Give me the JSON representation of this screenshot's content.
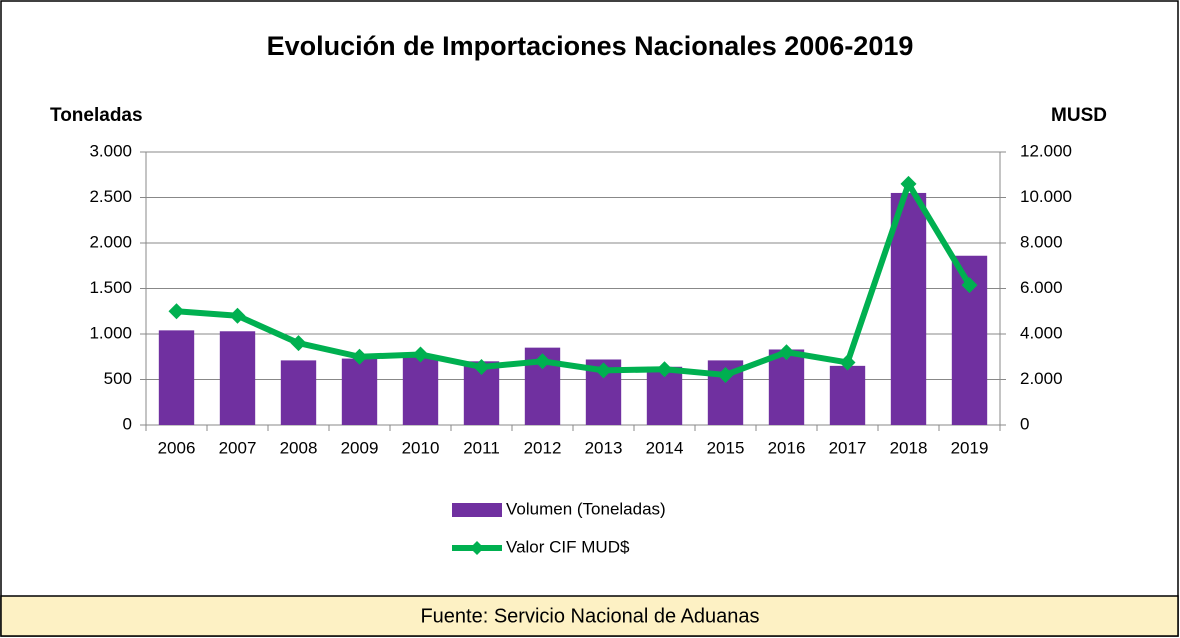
{
  "chart_data": {
    "type": "bar",
    "title": "Evolución de Importaciones Nacionales 2006-2019",
    "y_label": "Toneladas",
    "y2_label": "MUSD",
    "categories": [
      "2006",
      "2007",
      "2008",
      "2009",
      "2010",
      "2011",
      "2012",
      "2013",
      "2014",
      "2015",
      "2016",
      "2017",
      "2018",
      "2019"
    ],
    "series": [
      {
        "name": "Volumen (Toneladas)",
        "type": "bar",
        "color": "#7030a0",
        "values": [
          1040,
          1030,
          710,
          730,
          750,
          700,
          850,
          720,
          640,
          710,
          830,
          650,
          2550,
          1860
        ]
      },
      {
        "name": "Valor CIF MUD$",
        "type": "line",
        "axis": "y2",
        "color": "#00b050",
        "values": [
          5000,
          4800,
          3600,
          3000,
          3100,
          2550,
          2800,
          2400,
          2450,
          2200,
          3200,
          2750,
          10600,
          6150
        ]
      }
    ],
    "ylim": [
      0,
      3000
    ],
    "yticks": [
      0,
      500,
      {
        "value": 1000,
        "label": "1.000"
      },
      {
        "value": 1500,
        "label": "1.500"
      },
      {
        "value": 2000,
        "label": "2.000"
      },
      {
        "value": 2500,
        "label": "2.500"
      },
      {
        "value": 3000,
        "label": "3.000"
      }
    ],
    "y2lim": [
      0,
      12000
    ],
    "y2ticks": [
      0,
      {
        "value": 2000,
        "label": "2.000"
      },
      {
        "value": 4000,
        "label": "4.000"
      },
      {
        "value": 6000,
        "label": "6.000"
      },
      {
        "value": 8000,
        "label": "8.000"
      },
      {
        "value": 10000,
        "label": "10.000"
      },
      {
        "value": 12000,
        "label": "12.000"
      }
    ],
    "grid": true,
    "legend": "bottom",
    "source": "Fuente: Servicio Nacional de Aduanas"
  }
}
